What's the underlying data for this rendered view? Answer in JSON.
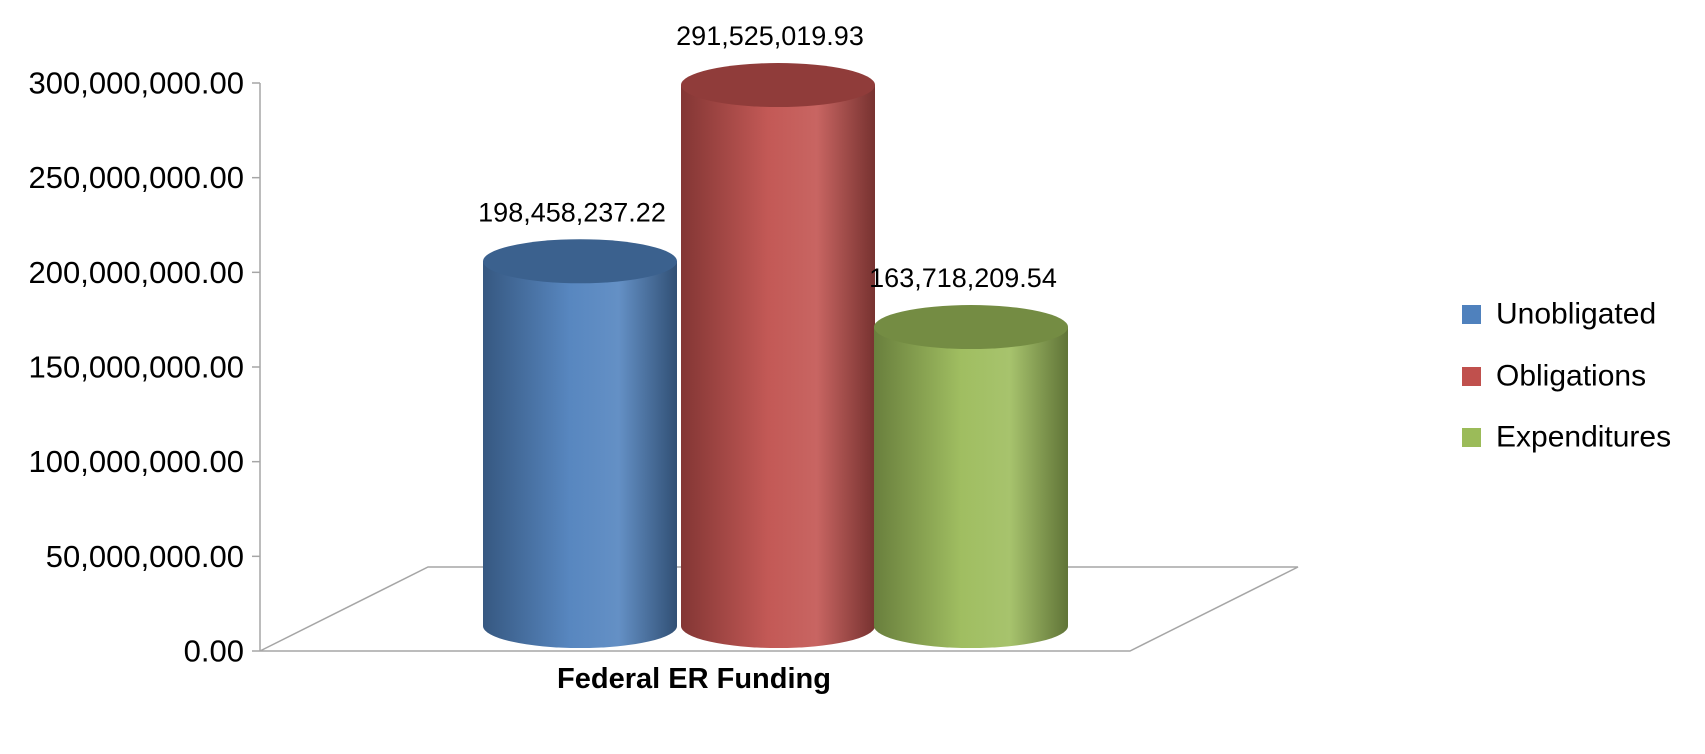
{
  "chart_data": {
    "type": "bar",
    "style": "3d-cylinder",
    "categories": [
      "Federal ER Funding"
    ],
    "series": [
      {
        "name": "Unobligated",
        "values": [
          198458237.22
        ],
        "label": "198,458,237.22",
        "color": "#4F81BD"
      },
      {
        "name": "Obligations",
        "values": [
          291525019.93
        ],
        "label": "291,525,019.93",
        "color": "#C0504D"
      },
      {
        "name": "Expenditures",
        "values": [
          163718209.54
        ],
        "label": "163,718,209.54",
        "color": "#9BBB59"
      }
    ],
    "ylim": [
      0,
      300000000
    ],
    "yticks": [
      0,
      50000000,
      100000000,
      150000000,
      200000000,
      250000000,
      300000000
    ],
    "ytick_labels": [
      "0.00",
      "50,000,000.00",
      "100,000,000.00",
      "150,000,000.00",
      "200,000,000.00",
      "250,000,000.00",
      "300,000,000.00"
    ],
    "grid": false,
    "legend": {
      "position": "right",
      "entries": [
        "Unobligated",
        "Obligations",
        "Expenditures"
      ]
    }
  }
}
